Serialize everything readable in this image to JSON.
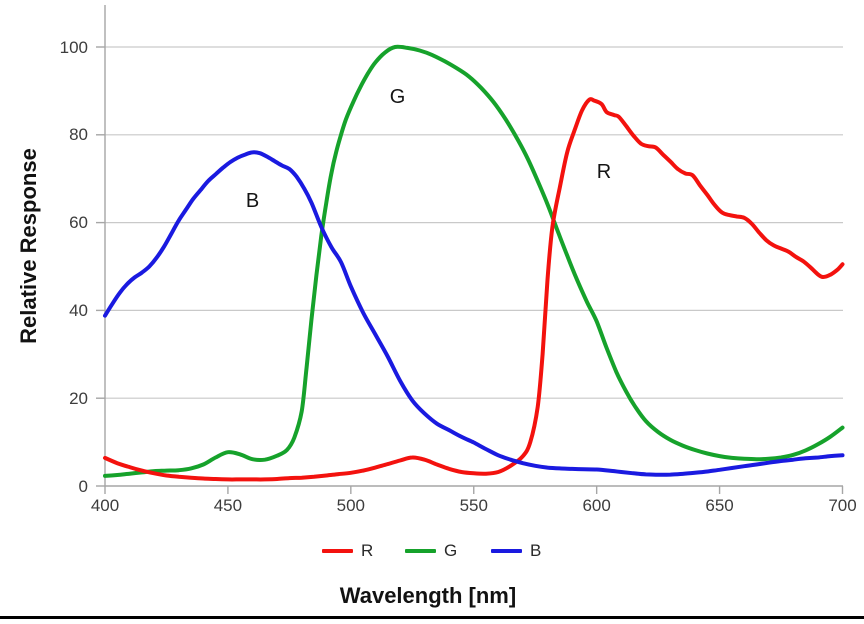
{
  "figure": {
    "y_axis_title": "Relative Response",
    "x_axis_title": "Wavelength [nm]"
  },
  "chart_data": {
    "type": "line",
    "title": "",
    "xlabel": "Wavelength [nm]",
    "ylabel": "Relative Response",
    "xlim": [
      400,
      700
    ],
    "ylim": [
      0,
      110
    ],
    "xticks": [
      400,
      450,
      500,
      550,
      600,
      650,
      700
    ],
    "yticks": [
      0,
      20,
      40,
      60,
      80,
      100
    ],
    "grid": "horizontal",
    "legend_position": "bottom",
    "legend": [
      "R",
      "G",
      "B"
    ],
    "colors": {
      "R": "#f3120e",
      "G": "#16a22b",
      "B": "#1a1ae0",
      "grid": "#c9c9c9",
      "axis": "#a6a6a6"
    },
    "annotations": [
      {
        "label": "B",
        "wavelength": 460,
        "value": 65
      },
      {
        "label": "G",
        "wavelength": 519,
        "value": 88.5
      },
      {
        "label": "R",
        "wavelength": 603,
        "value": 71.5
      }
    ],
    "series": [
      {
        "name": "G",
        "color": "#16a22b",
        "points": [
          [
            400,
            2.3
          ],
          [
            405,
            2.5
          ],
          [
            410,
            2.8
          ],
          [
            415,
            3.1
          ],
          [
            420,
            3.4
          ],
          [
            425,
            3.5
          ],
          [
            430,
            3.6
          ],
          [
            435,
            4.0
          ],
          [
            440,
            4.9
          ],
          [
            445,
            6.5
          ],
          [
            450,
            7.7
          ],
          [
            455,
            7.2
          ],
          [
            460,
            6.1
          ],
          [
            465,
            6.0
          ],
          [
            470,
            6.9
          ],
          [
            474,
            8.2
          ],
          [
            477,
            11
          ],
          [
            480,
            17
          ],
          [
            482,
            27
          ],
          [
            484,
            38
          ],
          [
            486,
            48
          ],
          [
            488,
            57
          ],
          [
            490,
            64.5
          ],
          [
            492,
            71
          ],
          [
            494,
            76
          ],
          [
            496,
            80
          ],
          [
            498,
            83.5
          ],
          [
            501,
            87.5
          ],
          [
            504,
            91
          ],
          [
            507,
            94
          ],
          [
            510,
            96.5
          ],
          [
            514,
            98.8
          ],
          [
            518,
            100
          ],
          [
            523,
            99.8
          ],
          [
            528,
            99.2
          ],
          [
            533,
            98.2
          ],
          [
            538,
            96.8
          ],
          [
            543,
            95.2
          ],
          [
            548,
            93.3
          ],
          [
            553,
            90.7
          ],
          [
            558,
            87.5
          ],
          [
            563,
            83.5
          ],
          [
            568,
            78.8
          ],
          [
            572,
            74.5
          ],
          [
            576,
            69.5
          ],
          [
            580,
            64.2
          ],
          [
            584,
            58.3
          ],
          [
            588,
            52.5
          ],
          [
            592,
            47
          ],
          [
            596,
            42
          ],
          [
            600,
            37.5
          ],
          [
            604,
            31.5
          ],
          [
            608,
            26
          ],
          [
            612,
            21.5
          ],
          [
            616,
            17.8
          ],
          [
            620,
            14.8
          ],
          [
            625,
            12.3
          ],
          [
            630,
            10.5
          ],
          [
            635,
            9.2
          ],
          [
            640,
            8.2
          ],
          [
            645,
            7.4
          ],
          [
            650,
            6.8
          ],
          [
            655,
            6.4
          ],
          [
            660,
            6.2
          ],
          [
            665,
            6.1
          ],
          [
            670,
            6.2
          ],
          [
            675,
            6.5
          ],
          [
            680,
            7.1
          ],
          [
            685,
            8.1
          ],
          [
            690,
            9.5
          ],
          [
            695,
            11.2
          ],
          [
            700,
            13.3
          ]
        ]
      },
      {
        "name": "R",
        "color": "#f3120e",
        "points": [
          [
            400,
            6.4
          ],
          [
            405,
            5.2
          ],
          [
            410,
            4.3
          ],
          [
            415,
            3.5
          ],
          [
            420,
            2.9
          ],
          [
            425,
            2.4
          ],
          [
            430,
            2.1
          ],
          [
            435,
            1.9
          ],
          [
            440,
            1.7
          ],
          [
            445,
            1.6
          ],
          [
            450,
            1.5
          ],
          [
            455,
            1.5
          ],
          [
            460,
            1.5
          ],
          [
            465,
            1.5
          ],
          [
            470,
            1.6
          ],
          [
            475,
            1.8
          ],
          [
            480,
            1.9
          ],
          [
            485,
            2.1
          ],
          [
            490,
            2.4
          ],
          [
            495,
            2.7
          ],
          [
            500,
            3.0
          ],
          [
            505,
            3.5
          ],
          [
            510,
            4.2
          ],
          [
            515,
            5.0
          ],
          [
            520,
            5.8
          ],
          [
            525,
            6.5
          ],
          [
            530,
            6.0
          ],
          [
            535,
            4.9
          ],
          [
            540,
            3.9
          ],
          [
            545,
            3.2
          ],
          [
            550,
            2.9
          ],
          [
            555,
            2.8
          ],
          [
            560,
            3.2
          ],
          [
            565,
            4.6
          ],
          [
            570,
            6.8
          ],
          [
            573,
            10
          ],
          [
            576,
            18
          ],
          [
            578,
            30
          ],
          [
            580,
            47
          ],
          [
            582,
            59
          ],
          [
            585,
            68
          ],
          [
            588,
            76
          ],
          [
            591,
            81
          ],
          [
            594,
            85.5
          ],
          [
            597,
            88
          ],
          [
            599,
            87.8
          ],
          [
            602,
            87
          ],
          [
            604,
            85.2
          ],
          [
            607,
            84.5
          ],
          [
            609,
            84.1
          ],
          [
            612,
            82
          ],
          [
            615,
            79.8
          ],
          [
            618,
            78
          ],
          [
            621,
            77.4
          ],
          [
            624,
            77.1
          ],
          [
            627,
            75.5
          ],
          [
            630,
            73.9
          ],
          [
            633,
            72.2
          ],
          [
            636,
            71.2
          ],
          [
            639,
            70.8
          ],
          [
            642,
            68.5
          ],
          [
            645,
            66.3
          ],
          [
            648,
            64
          ],
          [
            651,
            62.3
          ],
          [
            654,
            61.7
          ],
          [
            657,
            61.4
          ],
          [
            660,
            61.1
          ],
          [
            663,
            59.8
          ],
          [
            666,
            57.8
          ],
          [
            669,
            56
          ],
          [
            672,
            54.8
          ],
          [
            675,
            54.1
          ],
          [
            678,
            53.4
          ],
          [
            681,
            52.2
          ],
          [
            684,
            51.2
          ],
          [
            687,
            49.8
          ],
          [
            690,
            48.2
          ],
          [
            692,
            47.6
          ],
          [
            695,
            48.1
          ],
          [
            698,
            49.3
          ],
          [
            700,
            50.5
          ]
        ]
      },
      {
        "name": "B",
        "color": "#1a1ae0",
        "points": [
          [
            400,
            38.8
          ],
          [
            403,
            41.5
          ],
          [
            406,
            44
          ],
          [
            409,
            46
          ],
          [
            412,
            47.5
          ],
          [
            415,
            48.6
          ],
          [
            418,
            50
          ],
          [
            421,
            52
          ],
          [
            424,
            54.5
          ],
          [
            427,
            57.5
          ],
          [
            430,
            60.5
          ],
          [
            433,
            63
          ],
          [
            436,
            65.5
          ],
          [
            439,
            67.5
          ],
          [
            442,
            69.5
          ],
          [
            445,
            71
          ],
          [
            448,
            72.5
          ],
          [
            451,
            73.8
          ],
          [
            454,
            74.8
          ],
          [
            457,
            75.5
          ],
          [
            460,
            76
          ],
          [
            463,
            75.8
          ],
          [
            466,
            75
          ],
          [
            469,
            74
          ],
          [
            472,
            73
          ],
          [
            475,
            72.2
          ],
          [
            478,
            70.4
          ],
          [
            481,
            67.8
          ],
          [
            484,
            64.5
          ],
          [
            488,
            59
          ],
          [
            492,
            54.5
          ],
          [
            496,
            51
          ],
          [
            500,
            45.5
          ],
          [
            505,
            39.5
          ],
          [
            510,
            34.5
          ],
          [
            515,
            29.5
          ],
          [
            520,
            24
          ],
          [
            525,
            19.5
          ],
          [
            530,
            16.5
          ],
          [
            535,
            14.2
          ],
          [
            540,
            12.7
          ],
          [
            545,
            11.2
          ],
          [
            550,
            9.9
          ],
          [
            555,
            8.4
          ],
          [
            560,
            7.0
          ],
          [
            565,
            6.0
          ],
          [
            570,
            5.2
          ],
          [
            575,
            4.6
          ],
          [
            580,
            4.2
          ],
          [
            585,
            4.0
          ],
          [
            590,
            3.9
          ],
          [
            595,
            3.8
          ],
          [
            600,
            3.75
          ],
          [
            605,
            3.5
          ],
          [
            610,
            3.2
          ],
          [
            615,
            2.9
          ],
          [
            620,
            2.65
          ],
          [
            625,
            2.55
          ],
          [
            630,
            2.6
          ],
          [
            635,
            2.75
          ],
          [
            640,
            3.0
          ],
          [
            645,
            3.3
          ],
          [
            650,
            3.7
          ],
          [
            655,
            4.1
          ],
          [
            660,
            4.5
          ],
          [
            665,
            4.9
          ],
          [
            670,
            5.3
          ],
          [
            675,
            5.7
          ],
          [
            680,
            6.0
          ],
          [
            685,
            6.3
          ],
          [
            690,
            6.5
          ],
          [
            695,
            6.8
          ],
          [
            700,
            7.0
          ]
        ]
      }
    ]
  }
}
